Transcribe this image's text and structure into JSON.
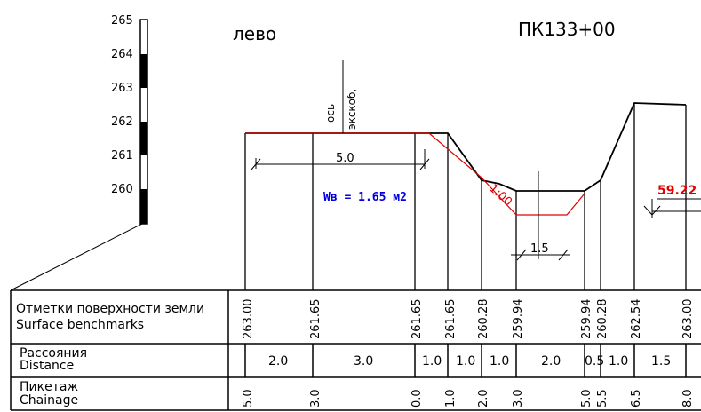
{
  "header": {
    "side": "лево",
    "station": "ПК133+00"
  },
  "scale": {
    "labels": [
      "265",
      "264",
      "263",
      "262",
      "261",
      "260"
    ]
  },
  "annotations": {
    "axis_label_1": "ось",
    "axis_label_2": "экскоб,",
    "width": "5.0",
    "area": "Wв = 1.65 м2",
    "slope": "1:00",
    "bottom_width": "1.5",
    "right_mark": "59.22"
  },
  "table": {
    "rows": [
      {
        "label_ru": "Отметки поверхности земли",
        "label_en": "Surface benchmarks"
      },
      {
        "label_ru": "Рассояния",
        "label_en": "Distance"
      },
      {
        "label_ru": "Пикетаж",
        "label_en": "Chainage"
      }
    ],
    "elevations": [
      "263.00",
      "261.65",
      "261.65",
      "261.65",
      "260.28",
      "259.94",
      "259.94",
      "260.28",
      "262.54",
      "263.00"
    ],
    "distances": [
      "2.0",
      "3.0",
      "1.0",
      "1.0",
      "1.0",
      "2.0",
      "0.5",
      "1.0",
      "1.5"
    ],
    "chainage": [
      "5.0",
      "3.0",
      "0.0",
      "1.0",
      "2.0",
      "3.0",
      "5.0",
      "5.5",
      "6.5",
      "8.0"
    ]
  },
  "colors": {
    "line": "#000000",
    "design": "#e00000",
    "area": "#0000e0"
  }
}
